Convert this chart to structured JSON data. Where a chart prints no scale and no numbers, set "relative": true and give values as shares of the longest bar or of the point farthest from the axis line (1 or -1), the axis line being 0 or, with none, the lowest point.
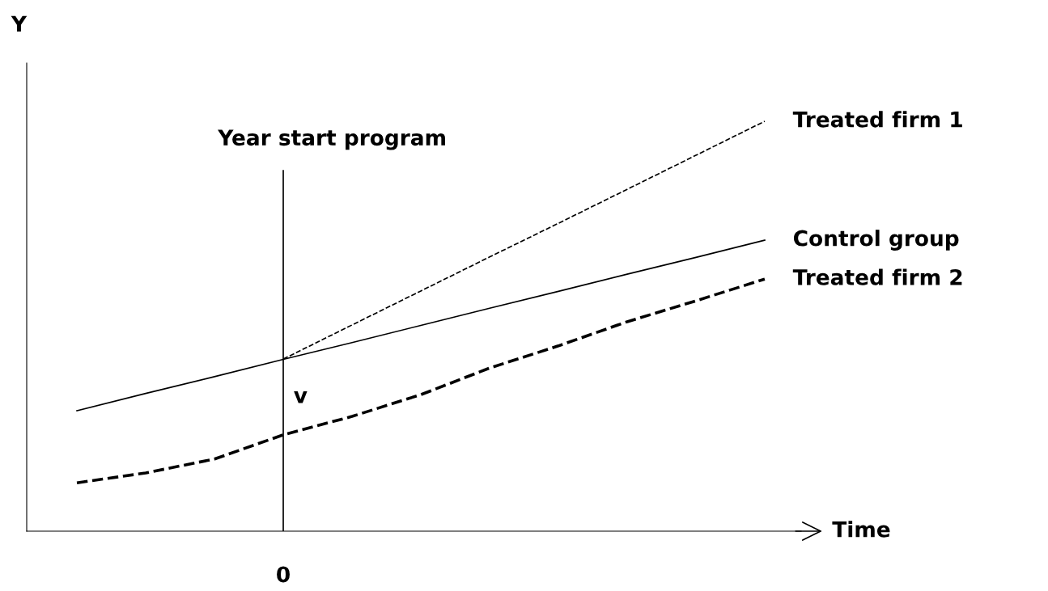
{
  "chart_data": {
    "type": "line",
    "relative": true,
    "xlabel": "Time",
    "ylabel": "Y",
    "categories": [
      null,
      null,
      null,
      null,
      null,
      null,
      null,
      null,
      null,
      null,
      null
    ],
    "series": [
      {
        "name": "Treated firm 1",
        "color": "#000000",
        "line_style": "dashed",
        "values": [
          null,
          null,
          null,
          0.42,
          0.503,
          0.586,
          0.669,
          0.751,
          0.834,
          0.917,
          1
        ]
      },
      {
        "name": "Control group",
        "color": "#000000",
        "line_style": "solid",
        "values": [
          0.294,
          0.336,
          0.377,
          0.419,
          0.46,
          0.502,
          0.544,
          0.585,
          0.627,
          0.668,
          0.71
        ]
      },
      {
        "name": "Treated firm 2",
        "color": "#000000",
        "line_style": "dashed",
        "values": [
          0.118,
          0.142,
          0.176,
          0.235,
          0.28,
          0.333,
          0.398,
          0.452,
          0.511,
          0.562,
          0.615
        ]
      }
    ],
    "ref_lines": [
      {
        "axis": "x",
        "label": "0",
        "color": "#000000",
        "line_style": "solid"
      }
    ],
    "annotations": [
      "v",
      "Year start program"
    ],
    "legend": false,
    "grid": false,
    "marker": "none"
  }
}
